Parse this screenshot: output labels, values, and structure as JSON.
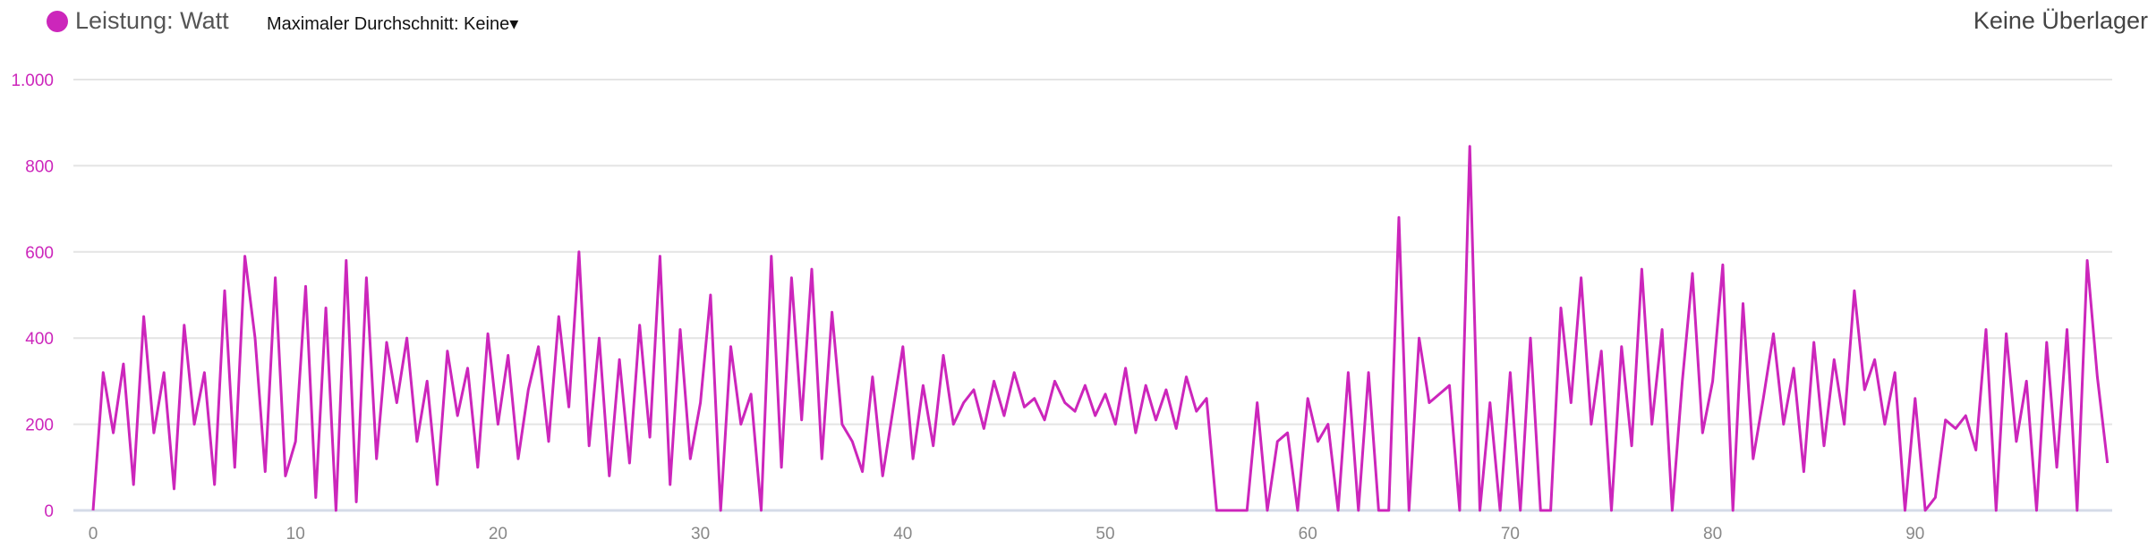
{
  "legend": {
    "label": "Leistung: Watt",
    "color": "#cc26bb"
  },
  "controls": {
    "max_average_label": "Maximaler Durchschnitt: Keine",
    "dropdown_icon": "caret-down-icon",
    "overlay_label": "Keine Überlager"
  },
  "chart_data": {
    "type": "line",
    "title": "",
    "xlabel": "",
    "ylabel": "",
    "series": [
      {
        "name": "Leistung: Watt",
        "color": "#cc26bb"
      }
    ],
    "x_start": 0,
    "x_step": 0.5,
    "xlim": [
      0,
      99.6
    ],
    "ylim": [
      0,
      1000
    ],
    "x_ticks": [
      0,
      10,
      20,
      30,
      40,
      50,
      60,
      70,
      80,
      90
    ],
    "y_ticks": [
      0,
      200,
      400,
      600,
      800,
      1000
    ],
    "y_tick_labels": [
      "0",
      "200",
      "400",
      "600",
      "800",
      "1.000"
    ],
    "grid": "horizontal",
    "values": [
      0,
      320,
      180,
      340,
      60,
      450,
      180,
      320,
      50,
      430,
      200,
      320,
      60,
      510,
      100,
      590,
      400,
      90,
      540,
      80,
      160,
      520,
      30,
      470,
      0,
      580,
      20,
      540,
      120,
      390,
      250,
      400,
      160,
      300,
      60,
      370,
      220,
      330,
      100,
      410,
      200,
      360,
      120,
      280,
      380,
      160,
      450,
      240,
      600,
      150,
      400,
      80,
      350,
      110,
      430,
      170,
      590,
      60,
      420,
      120,
      250,
      500,
      0,
      380,
      200,
      270,
      0,
      590,
      100,
      540,
      210,
      560,
      120,
      460,
      200,
      160,
      90,
      310,
      80,
      230,
      380,
      120,
      290,
      150,
      360,
      200,
      250,
      280,
      190,
      300,
      220,
      320,
      240,
      260,
      210,
      300,
      250,
      230,
      290,
      220,
      270,
      200,
      330,
      180,
      290,
      210,
      280,
      190,
      310,
      230,
      260,
      0,
      0,
      0,
      0,
      250,
      0,
      160,
      180,
      0,
      260,
      160,
      200,
      0,
      320,
      0,
      320,
      0,
      0,
      680,
      0,
      400,
      250,
      270,
      290,
      0,
      845,
      0,
      250,
      0,
      320,
      0,
      400,
      0,
      0,
      470,
      250,
      540,
      200,
      370,
      0,
      380,
      150,
      560,
      200,
      420,
      0,
      300,
      550,
      180,
      300,
      570,
      0,
      480,
      120,
      260,
      410,
      200,
      330,
      90,
      390,
      150,
      350,
      200,
      510,
      280,
      350,
      200,
      320,
      0,
      260,
      0,
      30,
      210,
      190,
      220,
      140,
      420,
      0,
      410,
      160,
      300,
      0,
      390,
      100,
      420,
      0,
      580,
      310,
      110
    ]
  }
}
